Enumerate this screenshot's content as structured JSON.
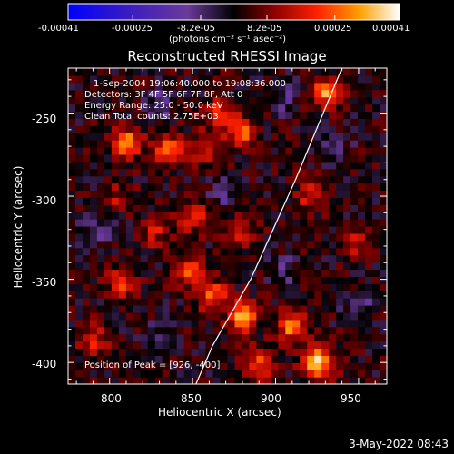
{
  "chart_data": {
    "type": "heatmap",
    "title": "Reconstructed RHESSI Image",
    "xlabel": "Heliocentric X (arcsec)",
    "ylabel": "Heliocentric Y (arcsec)",
    "xlim": [
      775,
      967
    ],
    "ylim": [
      -413,
      -223
    ],
    "x_ticks": [
      800,
      850,
      900,
      950
    ],
    "y_ticks": [
      -400,
      -350,
      -300,
      -250
    ],
    "colorbar": {
      "label": "(photons cm⁻² s⁻¹ asec⁻²)",
      "tick_labels": [
        "-0.00041",
        "-0.00025",
        "-8.2e-05",
        "8.2e-05",
        "0.00025",
        "0.00041"
      ],
      "tick_values": [
        -0.00041,
        -0.00025,
        -8.2e-05,
        8.2e-05,
        0.00025,
        0.00041
      ],
      "colormap": [
        "#0000ff",
        "#4020b0",
        "#6a3a9a",
        "#000000",
        "#8b0000",
        "#ff2000",
        "#ffa000",
        "#ffffff"
      ]
    },
    "annotations": [
      "1-Sep-2004 19:06:40.000 to 19:08:36.000",
      "Detectors: 3F 4F 5F 6F 7F 8F, Att 0",
      "Energy Range: 25.0 - 50.0 keV",
      "Clean     Total counts: 2.75E+03",
      "Position of Peak = [926, -400]"
    ],
    "peak": [
      926,
      -400
    ],
    "limb": [
      [
        940,
        -223
      ],
      [
        912,
        -290
      ],
      [
        885,
        -350
      ],
      [
        862,
        -390
      ],
      [
        852,
        -413
      ]
    ],
    "hot_spots": [
      {
        "x": 810,
        "y": -268,
        "v": 0.0003
      },
      {
        "x": 836,
        "y": -272,
        "v": 0.00026
      },
      {
        "x": 858,
        "y": -270,
        "v": 0.00022
      },
      {
        "x": 880,
        "y": -262,
        "v": 0.00024
      },
      {
        "x": 868,
        "y": -250,
        "v": 0.0002
      },
      {
        "x": 930,
        "y": -238,
        "v": 0.0003
      },
      {
        "x": 922,
        "y": -300,
        "v": 0.00018
      },
      {
        "x": 850,
        "y": -312,
        "v": 0.0002
      },
      {
        "x": 848,
        "y": -345,
        "v": 0.00026
      },
      {
        "x": 880,
        "y": -320,
        "v": 0.00016
      },
      {
        "x": 808,
        "y": -352,
        "v": 0.00022
      },
      {
        "x": 790,
        "y": -385,
        "v": 0.00018
      },
      {
        "x": 880,
        "y": -372,
        "v": 0.00032
      },
      {
        "x": 910,
        "y": -378,
        "v": 0.00028
      },
      {
        "x": 926,
        "y": -400,
        "v": 0.00041
      },
      {
        "x": 890,
        "y": -400,
        "v": 0.00026
      },
      {
        "x": 862,
        "y": -360,
        "v": 0.00024
      },
      {
        "x": 828,
        "y": -322,
        "v": 0.00014
      },
      {
        "x": 948,
        "y": -330,
        "v": 0.00016
      },
      {
        "x": 805,
        "y": -300,
        "v": 0.00012
      }
    ],
    "cold_spots": [
      {
        "x": 830,
        "y": -245,
        "v": -0.00012
      },
      {
        "x": 905,
        "y": -240,
        "v": -0.00012
      },
      {
        "x": 792,
        "y": -320,
        "v": -0.00012
      },
      {
        "x": 870,
        "y": -300,
        "v": -0.00012
      },
      {
        "x": 935,
        "y": -270,
        "v": -0.00012
      },
      {
        "x": 950,
        "y": -365,
        "v": -0.00012
      },
      {
        "x": 830,
        "y": -385,
        "v": -0.00011
      },
      {
        "x": 905,
        "y": -345,
        "v": -0.0001
      }
    ]
  },
  "footer": {
    "date": "3-May-2022 08:43"
  }
}
